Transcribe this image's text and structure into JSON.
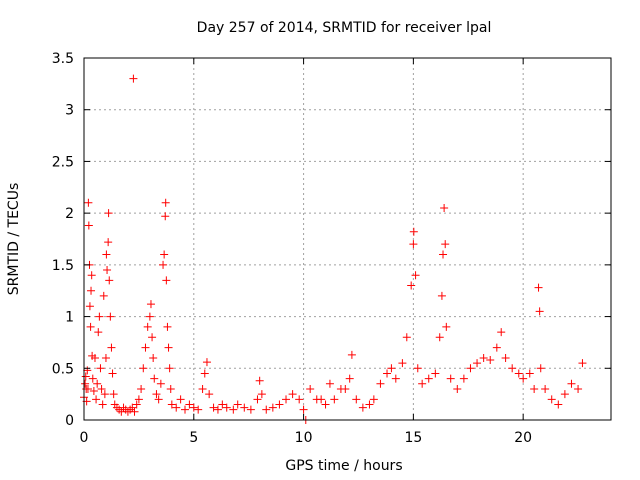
{
  "chart_data": {
    "type": "scatter",
    "title": "Day 257 of 2014, SRMTID for receiver lpal",
    "xlabel": "GPS time / hours",
    "ylabel": "SRMTID / TECUs",
    "xlim": [
      0,
      24
    ],
    "ylim": [
      0,
      3.5
    ],
    "xticks": [
      0,
      5,
      10,
      15,
      20
    ],
    "xtick_labels": [
      "0",
      "5",
      "10",
      "15",
      "20"
    ],
    "yticks": [
      0,
      0.5,
      1,
      1.5,
      2,
      2.5,
      3,
      3.5
    ],
    "ytick_labels": [
      "0",
      "0.5",
      "1",
      "1.5",
      "2",
      "2.5",
      "3",
      "3.5"
    ],
    "grid": true,
    "marker": "+",
    "color": "#ff0000",
    "series": [
      {
        "name": "SRMTID",
        "points": [
          [
            0.0,
            0.22
          ],
          [
            0.05,
            0.35
          ],
          [
            0.08,
            0.42
          ],
          [
            0.1,
            0.3
          ],
          [
            0.12,
            0.18
          ],
          [
            0.15,
            0.48
          ],
          [
            0.18,
            0.3
          ],
          [
            0.2,
            2.1
          ],
          [
            0.22,
            1.88
          ],
          [
            0.25,
            1.5
          ],
          [
            0.27,
            1.1
          ],
          [
            0.3,
            0.9
          ],
          [
            0.32,
            1.25
          ],
          [
            0.35,
            1.4
          ],
          [
            0.37,
            0.62
          ],
          [
            0.4,
            0.4
          ],
          [
            0.45,
            0.28
          ],
          [
            0.5,
            0.6
          ],
          [
            0.55,
            0.2
          ],
          [
            0.6,
            0.35
          ],
          [
            0.65,
            0.85
          ],
          [
            0.7,
            1.0
          ],
          [
            0.75,
            0.5
          ],
          [
            0.8,
            0.3
          ],
          [
            0.85,
            0.15
          ],
          [
            0.9,
            1.2
          ],
          [
            0.95,
            0.25
          ],
          [
            1.0,
            0.6
          ],
          [
            1.02,
            1.6
          ],
          [
            1.05,
            1.45
          ],
          [
            1.1,
            1.72
          ],
          [
            1.12,
            2.0
          ],
          [
            1.15,
            1.35
          ],
          [
            1.2,
            1.0
          ],
          [
            1.25,
            0.7
          ],
          [
            1.3,
            0.45
          ],
          [
            1.35,
            0.25
          ],
          [
            1.4,
            0.15
          ],
          [
            1.5,
            0.12
          ],
          [
            1.6,
            0.1
          ],
          [
            1.7,
            0.08
          ],
          [
            1.8,
            0.12
          ],
          [
            1.9,
            0.1
          ],
          [
            2.0,
            0.08
          ],
          [
            2.1,
            0.1
          ],
          [
            2.2,
            0.12
          ],
          [
            2.25,
            3.3
          ],
          [
            2.3,
            0.08
          ],
          [
            2.4,
            0.15
          ],
          [
            2.5,
            0.2
          ],
          [
            2.6,
            0.3
          ],
          [
            2.7,
            0.5
          ],
          [
            2.8,
            0.7
          ],
          [
            2.9,
            0.9
          ],
          [
            3.0,
            1.0
          ],
          [
            3.05,
            1.12
          ],
          [
            3.1,
            0.8
          ],
          [
            3.15,
            0.6
          ],
          [
            3.2,
            0.4
          ],
          [
            3.3,
            0.25
          ],
          [
            3.4,
            0.2
          ],
          [
            3.5,
            0.35
          ],
          [
            3.6,
            1.5
          ],
          [
            3.65,
            1.6
          ],
          [
            3.7,
            1.97
          ],
          [
            3.72,
            2.1
          ],
          [
            3.75,
            1.35
          ],
          [
            3.8,
            0.9
          ],
          [
            3.85,
            0.7
          ],
          [
            3.9,
            0.5
          ],
          [
            3.95,
            0.3
          ],
          [
            4.0,
            0.15
          ],
          [
            4.2,
            0.12
          ],
          [
            4.4,
            0.2
          ],
          [
            4.6,
            0.1
          ],
          [
            4.8,
            0.15
          ],
          [
            5.0,
            0.12
          ],
          [
            5.2,
            0.1
          ],
          [
            5.4,
            0.3
          ],
          [
            5.5,
            0.45
          ],
          [
            5.6,
            0.56
          ],
          [
            5.7,
            0.25
          ],
          [
            5.9,
            0.12
          ],
          [
            6.1,
            0.1
          ],
          [
            6.3,
            0.15
          ],
          [
            6.5,
            0.12
          ],
          [
            6.8,
            0.1
          ],
          [
            7.0,
            0.15
          ],
          [
            7.3,
            0.12
          ],
          [
            7.6,
            0.1
          ],
          [
            7.9,
            0.2
          ],
          [
            8.0,
            0.38
          ],
          [
            8.1,
            0.25
          ],
          [
            8.3,
            0.1
          ],
          [
            8.6,
            0.12
          ],
          [
            8.9,
            0.15
          ],
          [
            9.2,
            0.2
          ],
          [
            9.5,
            0.25
          ],
          [
            9.8,
            0.2
          ],
          [
            10.0,
            0.1
          ],
          [
            10.1,
            0.0
          ],
          [
            10.3,
            0.3
          ],
          [
            10.6,
            0.2
          ],
          [
            10.8,
            0.2
          ],
          [
            11.0,
            0.15
          ],
          [
            11.2,
            0.35
          ],
          [
            11.4,
            0.2
          ],
          [
            11.7,
            0.3
          ],
          [
            11.9,
            0.3
          ],
          [
            12.1,
            0.4
          ],
          [
            12.2,
            0.63
          ],
          [
            12.4,
            0.2
          ],
          [
            12.7,
            0.12
          ],
          [
            13.0,
            0.15
          ],
          [
            13.2,
            0.2
          ],
          [
            13.5,
            0.35
          ],
          [
            13.8,
            0.45
          ],
          [
            14.0,
            0.5
          ],
          [
            14.2,
            0.4
          ],
          [
            14.5,
            0.55
          ],
          [
            14.7,
            0.8
          ],
          [
            14.9,
            1.3
          ],
          [
            15.0,
            1.7
          ],
          [
            15.02,
            1.82
          ],
          [
            15.1,
            1.4
          ],
          [
            15.2,
            0.5
          ],
          [
            15.4,
            0.35
          ],
          [
            15.7,
            0.4
          ],
          [
            16.0,
            0.45
          ],
          [
            16.2,
            0.8
          ],
          [
            16.3,
            1.2
          ],
          [
            16.35,
            1.6
          ],
          [
            16.4,
            2.05
          ],
          [
            16.45,
            1.7
          ],
          [
            16.5,
            0.9
          ],
          [
            16.7,
            0.4
          ],
          [
            17.0,
            0.3
          ],
          [
            17.3,
            0.4
          ],
          [
            17.6,
            0.5
          ],
          [
            17.9,
            0.55
          ],
          [
            18.2,
            0.6
          ],
          [
            18.5,
            0.58
          ],
          [
            18.8,
            0.7
          ],
          [
            19.0,
            0.85
          ],
          [
            19.2,
            0.6
          ],
          [
            19.5,
            0.5
          ],
          [
            19.8,
            0.45
          ],
          [
            20.0,
            0.4
          ],
          [
            20.3,
            0.45
          ],
          [
            20.5,
            0.3
          ],
          [
            20.7,
            1.28
          ],
          [
            20.75,
            1.05
          ],
          [
            20.8,
            0.5
          ],
          [
            21.0,
            0.3
          ],
          [
            21.3,
            0.2
          ],
          [
            21.6,
            0.15
          ],
          [
            21.9,
            0.25
          ],
          [
            22.2,
            0.35
          ],
          [
            22.5,
            0.3
          ],
          [
            22.7,
            0.55
          ]
        ]
      }
    ]
  }
}
